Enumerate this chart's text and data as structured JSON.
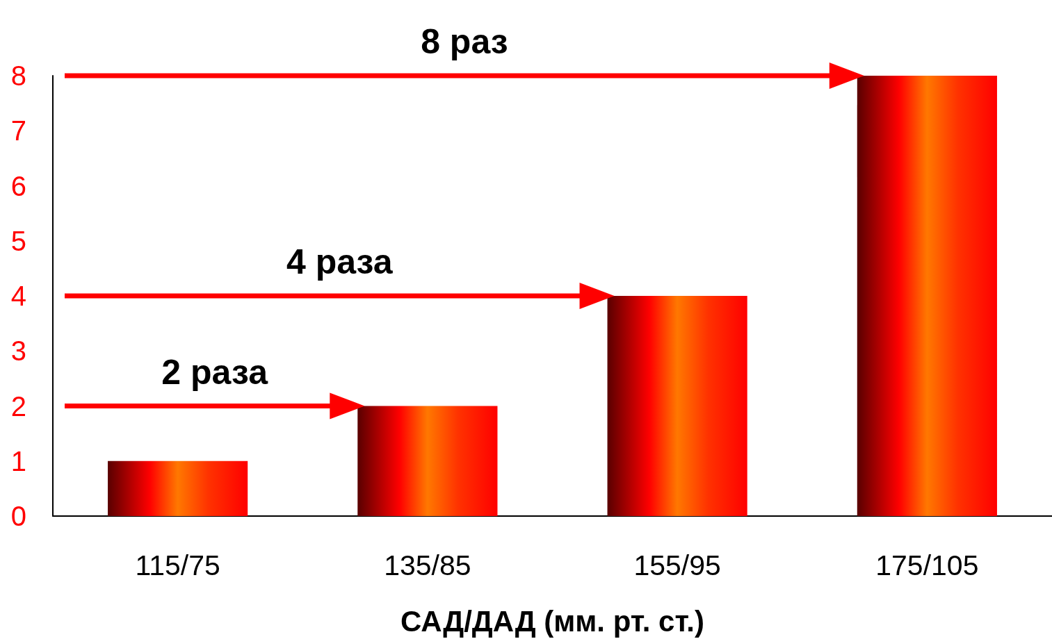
{
  "chart_data": {
    "type": "bar",
    "xlabel": "САД/ДАД (мм. рт. ст.)",
    "categories": [
      "115/75",
      "135/85",
      "155/95",
      "175/105"
    ],
    "values": [
      1,
      2,
      4,
      8
    ],
    "color": "#ff0000",
    "ylim": [
      0,
      8
    ],
    "yticks": [
      0,
      1,
      2,
      3,
      4,
      5,
      6,
      7,
      8
    ],
    "annotations": [
      "2 раза",
      "4 раза",
      "8 раз"
    ]
  }
}
